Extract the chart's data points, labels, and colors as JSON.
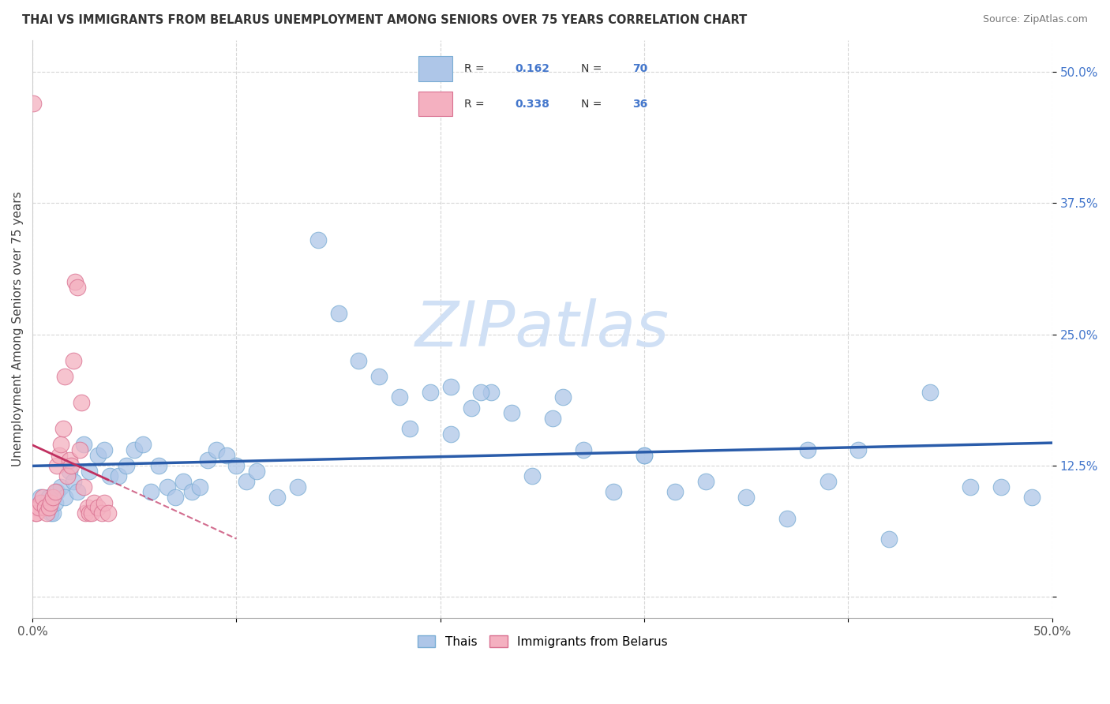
{
  "title": "THAI VS IMMIGRANTS FROM BELARUS UNEMPLOYMENT AMONG SENIORS OVER 75 YEARS CORRELATION CHART",
  "source": "Source: ZipAtlas.com",
  "ylabel": "Unemployment Among Seniors over 75 years",
  "xlim": [
    0.0,
    50.0
  ],
  "ylim": [
    -2.0,
    53.0
  ],
  "y_ticks": [
    0.0,
    12.5,
    25.0,
    37.5,
    50.0
  ],
  "x_ticks": [
    0.0,
    10.0,
    20.0,
    30.0,
    40.0,
    50.0
  ],
  "thai_color": "#aec6e8",
  "thai_edge_color": "#7aadd4",
  "thai_trend_color": "#2a5caa",
  "belarus_color": "#f4b0c0",
  "belarus_edge_color": "#d97090",
  "belarus_trend_color": "#c03060",
  "watermark_color": "#d0e0f5",
  "background_color": "#ffffff",
  "grid_color": "#cccccc",
  "r_color": "#4477cc",
  "thai_x": [
    0.4,
    0.5,
    0.6,
    0.7,
    0.8,
    0.9,
    1.0,
    1.1,
    1.2,
    1.4,
    1.6,
    1.8,
    2.0,
    2.2,
    2.5,
    2.8,
    3.2,
    3.5,
    3.8,
    4.2,
    4.6,
    5.0,
    5.4,
    5.8,
    6.2,
    6.6,
    7.0,
    7.4,
    7.8,
    8.2,
    8.6,
    9.0,
    9.5,
    10.0,
    10.5,
    11.0,
    12.0,
    13.0,
    14.0,
    15.0,
    16.0,
    17.0,
    18.0,
    18.5,
    19.5,
    20.5,
    21.5,
    22.5,
    23.5,
    24.5,
    25.5,
    27.0,
    28.5,
    30.0,
    31.5,
    33.0,
    35.0,
    37.0,
    38.0,
    39.0,
    40.5,
    42.0,
    44.0,
    46.0,
    47.5,
    49.0,
    20.5,
    22.0,
    26.0,
    30.0
  ],
  "thai_y": [
    9.5,
    9.0,
    8.5,
    9.0,
    9.5,
    8.0,
    8.0,
    9.0,
    10.0,
    10.5,
    9.5,
    12.0,
    11.0,
    10.0,
    14.5,
    12.0,
    13.5,
    14.0,
    11.5,
    11.5,
    12.5,
    14.0,
    14.5,
    10.0,
    12.5,
    10.5,
    9.5,
    11.0,
    10.0,
    10.5,
    13.0,
    14.0,
    13.5,
    12.5,
    11.0,
    12.0,
    9.5,
    10.5,
    34.0,
    27.0,
    22.5,
    21.0,
    19.0,
    16.0,
    19.5,
    15.5,
    18.0,
    19.5,
    17.5,
    11.5,
    17.0,
    14.0,
    10.0,
    13.5,
    10.0,
    11.0,
    9.5,
    7.5,
    14.0,
    11.0,
    14.0,
    5.5,
    19.5,
    10.5,
    10.5,
    9.5,
    20.0,
    19.5,
    19.0,
    13.5
  ],
  "belarus_x": [
    0.05,
    0.1,
    0.15,
    0.2,
    0.3,
    0.4,
    0.5,
    0.6,
    0.7,
    0.8,
    0.9,
    1.0,
    1.1,
    1.2,
    1.3,
    1.4,
    1.5,
    1.6,
    1.7,
    1.8,
    1.9,
    2.0,
    2.1,
    2.2,
    2.3,
    2.4,
    2.5,
    2.6,
    2.7,
    2.8,
    2.9,
    3.0,
    3.2,
    3.4,
    3.5,
    3.7
  ],
  "belarus_y": [
    47.0,
    8.5,
    8.0,
    8.0,
    8.5,
    9.0,
    9.5,
    8.5,
    8.0,
    8.5,
    9.0,
    9.5,
    10.0,
    12.5,
    13.5,
    14.5,
    16.0,
    21.0,
    11.5,
    13.0,
    12.5,
    22.5,
    30.0,
    29.5,
    14.0,
    18.5,
    10.5,
    8.0,
    8.5,
    8.0,
    8.0,
    9.0,
    8.5,
    8.0,
    9.0,
    8.0
  ]
}
